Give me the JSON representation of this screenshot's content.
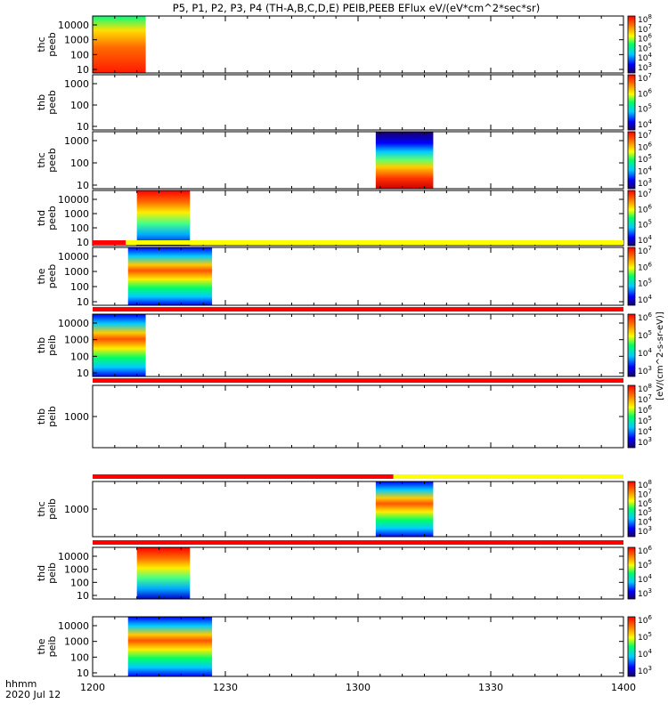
{
  "chart_data": {
    "type": "heatmap",
    "title": "P5, P1, P2, P3, P4 (TH-A,B,C,D,E) PEIB,PEEB EFlux eV/(eV*cm^2*sec*sr)",
    "x_axis": {
      "label_line1": "hhmm",
      "label_line2": "2020 Jul 12",
      "ticks": [
        "1200",
        "1230",
        "1300",
        "1330",
        "1400"
      ],
      "range_minutes": [
        0,
        120
      ],
      "minor_tick_minutes": 5
    },
    "colorbar_units": "[eV/(cm^2-s-sr-eV)]",
    "colormap": "rainbow (blue low, red high)",
    "panels": [
      {
        "ylabel_1": "thc",
        "ylabel_2": "peeb",
        "ytick_labels": [
          "10000",
          "1000",
          "100",
          "10"
        ],
        "cbar_exponents": [
          "3",
          "4",
          "5",
          "6",
          "7",
          "8"
        ],
        "data_span_minutes": [
          0,
          12
        ],
        "blocks": [
          [
            0.0,
            12.0
          ]
        ]
      },
      {
        "ylabel_1": "thb",
        "ylabel_2": "peeb",
        "ytick_labels": [
          "1000",
          "100",
          "10"
        ],
        "cbar_exponents": [
          "4",
          "5",
          "6",
          "7"
        ],
        "data_span_minutes": null,
        "blocks": []
      },
      {
        "ylabel_1": "thc",
        "ylabel_2": "peeb",
        "ytick_labels": [
          "1000",
          "100",
          "10"
        ],
        "cbar_exponents": [
          "3",
          "4",
          "5",
          "6",
          "7"
        ],
        "data_span_minutes": [
          64,
          77
        ],
        "blocks": [
          [
            64.0,
            77.0
          ]
        ]
      },
      {
        "ylabel_1": "thd",
        "ylabel_2": "peeb",
        "ytick_labels": [
          "10000",
          "1000",
          "100",
          "10"
        ],
        "cbar_exponents": [
          "4",
          "5",
          "6",
          "7"
        ],
        "data_span_minutes": [
          10,
          22
        ],
        "blocks": [
          [
            10.0,
            22.0
          ]
        ]
      },
      {
        "ylabel_1": "the",
        "ylabel_2": "peeb",
        "ytick_labels": [
          "10000",
          "1000",
          "100",
          "10"
        ],
        "cbar_exponents": [
          "4",
          "5",
          "6",
          "7"
        ],
        "data_span_minutes": [
          8,
          27
        ],
        "blocks": [
          [
            8.0,
            27.0
          ]
        ]
      },
      {
        "ylabel_1": "thb",
        "ylabel_2": "peib",
        "ytick_labels": [
          "10000",
          "1000",
          "100",
          "10"
        ],
        "cbar_exponents": [
          "3",
          "4",
          "5",
          "6"
        ],
        "data_span_minutes": [
          0,
          12
        ],
        "blocks": [
          [
            0.0,
            12.0
          ]
        ]
      },
      {
        "ylabel_1": "thb",
        "ylabel_2": "peib",
        "ytick_labels": [
          "1000"
        ],
        "cbar_exponents": [
          "3",
          "4",
          "5",
          "6",
          "7",
          "8"
        ],
        "data_span_minutes": null,
        "blocks": []
      },
      {
        "ylabel_1": "thc",
        "ylabel_2": "peib",
        "ytick_labels": [
          "1000"
        ],
        "cbar_exponents": [
          "3",
          "4",
          "5",
          "6",
          "7",
          "8"
        ],
        "data_span_minutes": [
          64,
          77
        ],
        "blocks": [
          [
            64.0,
            77.0
          ]
        ]
      },
      {
        "ylabel_1": "thd",
        "ylabel_2": "peib",
        "ytick_labels": [
          "10000",
          "1000",
          "100",
          "10"
        ],
        "cbar_exponents": [
          "3",
          "4",
          "5",
          "6"
        ],
        "data_span_minutes": [
          10,
          22
        ],
        "blocks": [
          [
            10.0,
            22.0
          ]
        ]
      },
      {
        "ylabel_1": "the",
        "ylabel_2": "peib",
        "ytick_labels": [
          "10000",
          "1000",
          "100",
          "10"
        ],
        "cbar_exponents": [
          "3",
          "4",
          "5",
          "6"
        ],
        "data_span_minutes": [
          8,
          27
        ],
        "blocks": [
          [
            8.0,
            27.0
          ]
        ]
      }
    ],
    "mode_bars": [
      {
        "after_panel": 5,
        "segments": [
          {
            "from": 0,
            "to": 7.5,
            "color": "#ff0000"
          },
          {
            "from": 7.5,
            "to": 120,
            "color": "#ffff00"
          }
        ]
      },
      {
        "after_panel": 6,
        "segments": [
          {
            "from": 0,
            "to": 120,
            "color": "#ff0000"
          }
        ]
      },
      {
        "after_panel": 7,
        "segments": [
          {
            "from": 0,
            "to": 120,
            "color": "#ff0000"
          }
        ]
      },
      {
        "after_panel": 8,
        "segments": [
          {
            "from": 0,
            "to": 68,
            "color": "#ff0000"
          },
          {
            "from": 68,
            "to": 120,
            "color": "#ffff00"
          }
        ]
      },
      {
        "after_panel": 9,
        "segments": [
          {
            "from": 0,
            "to": 120,
            "color": "#ff0000"
          }
        ]
      }
    ]
  }
}
